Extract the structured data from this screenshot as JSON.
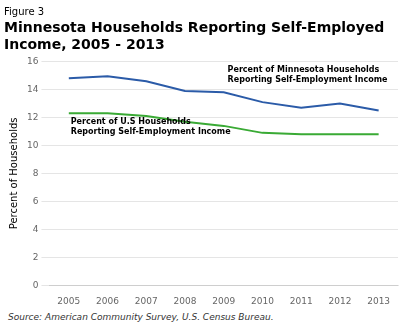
{
  "chart_data": {
    "type": "line",
    "subtitle": "Figure 3",
    "title": "Minnesota Households Reporting Self-Employed\nIncome, 2005 - 2013",
    "ylabel": "Percent of Households",
    "source": "Source: American Community Survey, U.S. Census Bureau.",
    "x": [
      2005,
      2006,
      2007,
      2008,
      2009,
      2010,
      2011,
      2012,
      2013
    ],
    "series": [
      {
        "color": "#2b5ba8",
        "values": [
          14.8,
          14.95,
          14.6,
          13.9,
          13.8,
          13.1,
          12.7,
          13.0,
          12.5
        ]
      },
      {
        "color": "#3aaa35",
        "values": [
          12.3,
          12.3,
          12.1,
          11.7,
          11.4,
          10.9,
          10.8,
          10.8,
          10.8
        ]
      }
    ],
    "annotations": [
      {
        "text": "Percent of Minnesota Households\nReporting Self-Employment Income",
        "x": 2009.1,
        "y": 15.7
      },
      {
        "text": "Percent of U.S Households\nReporting Self-Employment Income",
        "x": 2005.05,
        "y": 11.95
      }
    ],
    "xlim": [
      2004.5,
      2013.5
    ],
    "xticks": [
      2005,
      2006,
      2007,
      2008,
      2009,
      2010,
      2011,
      2012,
      2013
    ],
    "ylim": [
      0,
      16
    ],
    "yticks": [
      0,
      2,
      4,
      6,
      8,
      10,
      12,
      14,
      16
    ],
    "grid": true
  }
}
